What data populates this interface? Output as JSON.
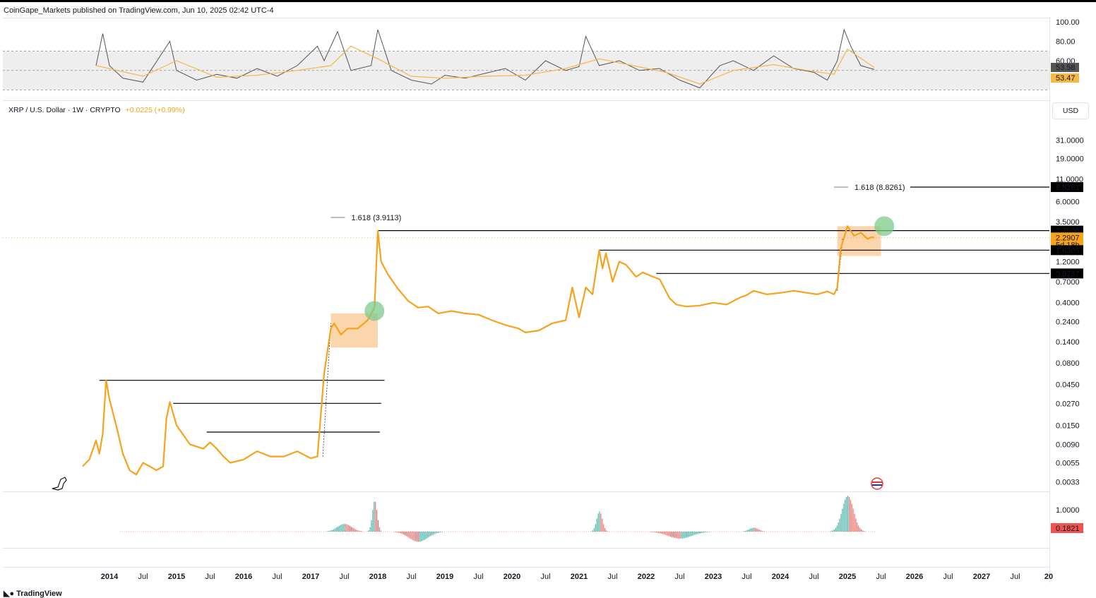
{
  "header": {
    "publisher": "CoinGape_Markets published on TradingView.com, Jun 10, 2025 02:42 UTC-4"
  },
  "legend": {
    "symbol": "XRP / U.S. Dollar · 1W · CRYPTO",
    "change": "+0.0225 (+0.99%)"
  },
  "currency_button": "USD",
  "footer": {
    "brand": "TradingView",
    "logo": "tradingview-logo"
  },
  "colors": {
    "price": "#f7a21b",
    "level": "#000000",
    "rsi": "#555555",
    "rsi_ma": "#f5b845",
    "hist_pos": "#26a69a",
    "hist_neg": "#ef5350",
    "zone": "#f9c58a",
    "target": "#7ec98b"
  },
  "chart_data": [
    {
      "type": "line",
      "name": "RSI pane",
      "yticks": [
        "100.00",
        "80.00",
        "60.00"
      ],
      "badges": [
        "53.58",
        "53.47"
      ],
      "series": [
        {
          "name": "RSI",
          "x": [
            2013.8,
            2013.9,
            2014.0,
            2014.2,
            2014.5,
            2014.9,
            2015.0,
            2015.3,
            2015.6,
            2015.9,
            2016.2,
            2016.5,
            2016.8,
            2017.1,
            2017.2,
            2017.4,
            2017.6,
            2017.9,
            2018.0,
            2018.2,
            2018.5,
            2018.8,
            2019.0,
            2019.3,
            2019.6,
            2019.9,
            2020.2,
            2020.5,
            2020.8,
            2021.0,
            2021.1,
            2021.3,
            2021.6,
            2021.9,
            2022.2,
            2022.5,
            2022.8,
            2023.1,
            2023.3,
            2023.6,
            2023.9,
            2024.2,
            2024.5,
            2024.7,
            2024.85,
            2024.95,
            2025.05,
            2025.2,
            2025.4
          ],
          "values": [
            55,
            88,
            55,
            42,
            38,
            80,
            50,
            40,
            46,
            42,
            52,
            44,
            55,
            75,
            60,
            90,
            50,
            55,
            92,
            50,
            40,
            36,
            45,
            42,
            47,
            52,
            40,
            60,
            50,
            54,
            85,
            55,
            60,
            50,
            52,
            40,
            32,
            55,
            60,
            50,
            65,
            52,
            48,
            40,
            60,
            92,
            75,
            55,
            51
          ]
        },
        {
          "name": "RSI MA",
          "x": [
            2013.8,
            2014.5,
            2015.0,
            2015.6,
            2016.2,
            2016.8,
            2017.3,
            2017.6,
            2018.0,
            2018.5,
            2019.0,
            2019.6,
            2020.2,
            2020.8,
            2021.3,
            2021.8,
            2022.3,
            2022.8,
            2023.3,
            2023.9,
            2024.4,
            2024.8,
            2025.0,
            2025.4
          ],
          "values": [
            55,
            44,
            60,
            43,
            45,
            50,
            55,
            75,
            62,
            44,
            42,
            44,
            45,
            52,
            62,
            55,
            48,
            36,
            50,
            56,
            50,
            46,
            72,
            53
          ]
        }
      ]
    },
    {
      "type": "line",
      "name": "XRP / U.S. Dollar price",
      "scale": "log",
      "yticks": [
        "31.0000",
        "19.0000",
        "11.0000",
        "6.0000",
        "3.5000",
        "1.2000",
        "0.7000",
        "0.4000",
        "0.2400",
        "0.1400",
        "0.0800",
        "0.0450",
        "0.0270",
        "0.0150",
        "0.0090",
        "0.0055",
        "0.0033"
      ],
      "ytick_values": [
        31,
        19,
        11,
        6,
        3.5,
        1.2,
        0.7,
        0.4,
        0.24,
        0.14,
        0.08,
        0.045,
        0.027,
        0.015,
        0.009,
        0.0055,
        0.0033
      ],
      "xticks": [
        "2014",
        "Jul",
        "2015",
        "Jul",
        "2016",
        "Jul",
        "2017",
        "Jul",
        "2018",
        "Jul",
        "2019",
        "Jul",
        "2020",
        "Jul",
        "2021",
        "Jul",
        "2022",
        "Jul",
        "2023",
        "Jul",
        "2024",
        "Jul",
        "2025",
        "Jul",
        "2026",
        "Jul",
        "2027",
        "Jul",
        "20"
      ],
      "xtick_values": [
        2014,
        2014.5,
        2015,
        2015.5,
        2016,
        2016.5,
        2017,
        2017.5,
        2018,
        2018.5,
        2019,
        2019.5,
        2020,
        2020.5,
        2021,
        2021.5,
        2022,
        2022.5,
        2023,
        2023.5,
        2024,
        2024.5,
        2025,
        2025.5,
        2026,
        2026.5,
        2027,
        2027.5,
        2028
      ],
      "x": [
        2013.6,
        2013.7,
        2013.8,
        2013.85,
        2013.9,
        2013.95,
        2014.0,
        2014.1,
        2014.2,
        2014.3,
        2014.4,
        2014.5,
        2014.6,
        2014.7,
        2014.8,
        2014.85,
        2014.9,
        2015.0,
        2015.2,
        2015.4,
        2015.5,
        2015.6,
        2015.7,
        2015.8,
        2016.0,
        2016.2,
        2016.4,
        2016.6,
        2016.8,
        2017.0,
        2017.1,
        2017.15,
        2017.2,
        2017.3,
        2017.35,
        2017.45,
        2017.55,
        2017.7,
        2017.85,
        2017.95,
        2018.0,
        2018.05,
        2018.15,
        2018.3,
        2018.45,
        2018.6,
        2018.75,
        2018.9,
        2019.1,
        2019.3,
        2019.5,
        2019.7,
        2019.9,
        2020.1,
        2020.2,
        2020.4,
        2020.6,
        2020.8,
        2020.9,
        2021.0,
        2021.1,
        2021.2,
        2021.3,
        2021.35,
        2021.4,
        2021.5,
        2021.6,
        2021.7,
        2021.85,
        2021.95,
        2022.1,
        2022.2,
        2022.35,
        2022.45,
        2022.6,
        2022.8,
        2023.0,
        2023.2,
        2023.4,
        2023.5,
        2023.6,
        2023.8,
        2024.0,
        2024.2,
        2024.4,
        2024.55,
        2024.7,
        2024.8,
        2024.85,
        2024.9,
        2024.95,
        2025.0,
        2025.1,
        2025.2,
        2025.3,
        2025.35,
        2025.4
      ],
      "values": [
        0.005,
        0.006,
        0.01,
        0.007,
        0.012,
        0.05,
        0.03,
        0.015,
        0.007,
        0.0045,
        0.004,
        0.0055,
        0.005,
        0.0045,
        0.005,
        0.018,
        0.028,
        0.015,
        0.009,
        0.008,
        0.0095,
        0.008,
        0.0065,
        0.0055,
        0.006,
        0.0075,
        0.0065,
        0.0065,
        0.0075,
        0.0062,
        0.0065,
        0.02,
        0.06,
        0.2,
        0.23,
        0.17,
        0.2,
        0.2,
        0.25,
        0.35,
        2.75,
        1.2,
        0.85,
        0.58,
        0.42,
        0.35,
        0.36,
        0.3,
        0.32,
        0.3,
        0.29,
        0.25,
        0.22,
        0.2,
        0.18,
        0.19,
        0.23,
        0.25,
        0.6,
        0.27,
        0.6,
        0.5,
        1.63,
        1.0,
        1.5,
        0.7,
        1.2,
        1.1,
        0.8,
        0.9,
        0.8,
        0.75,
        0.45,
        0.38,
        0.36,
        0.37,
        0.4,
        0.38,
        0.46,
        0.49,
        0.55,
        0.5,
        0.52,
        0.55,
        0.52,
        0.5,
        0.54,
        0.5,
        0.6,
        1.7,
        2.3,
        3.1,
        2.4,
        2.6,
        2.2,
        2.3,
        2.29
      ],
      "badges": [
        {
          "text": "8.8261",
          "value": 8.8261,
          "style": "black"
        },
        {
          "text": "2.7506",
          "value": 2.7506,
          "style": "black"
        },
        {
          "text": "2.2907",
          "sub": "5d 18h",
          "value": 2.2907,
          "style": "orange"
        },
        {
          "text": "1.6305",
          "value": 1.6305,
          "style": "black"
        },
        {
          "text": "0.8737",
          "value": 0.8737,
          "style": "black"
        }
      ],
      "levels": [
        {
          "value": 2.7506,
          "from": 2018.0
        },
        {
          "value": 1.6305,
          "from": 2021.3
        },
        {
          "value": 0.8737,
          "from": 2022.15
        },
        {
          "value": 0.05,
          "from": 2013.85,
          "to": 2018.1
        },
        {
          "value": 0.027,
          "from": 2014.95,
          "to": 2018.05
        },
        {
          "value": 0.0125,
          "from": 2015.45,
          "to": 2018.03
        }
      ],
      "fib_labels": [
        {
          "text": "1.618 (3.9113)",
          "x": 2017.3,
          "value": 3.9113
        },
        {
          "text": "1.618 (8.8261)",
          "x": 2024.8,
          "value": 8.8261
        }
      ],
      "zones": [
        {
          "x0": 2017.3,
          "x1": 2018.0,
          "top": 0.3,
          "bottom": 0.12
        },
        {
          "x0": 2024.85,
          "x1": 2025.5,
          "top": 3.1,
          "bottom": 1.4
        }
      ],
      "targets": [
        {
          "x": 2017.95,
          "value": 0.32
        },
        {
          "x": 2025.55,
          "value": 3.1
        }
      ]
    },
    {
      "type": "bar",
      "name": "Histogram pane",
      "yticks": [
        "1.0000"
      ],
      "badge": "0.1821"
    }
  ]
}
